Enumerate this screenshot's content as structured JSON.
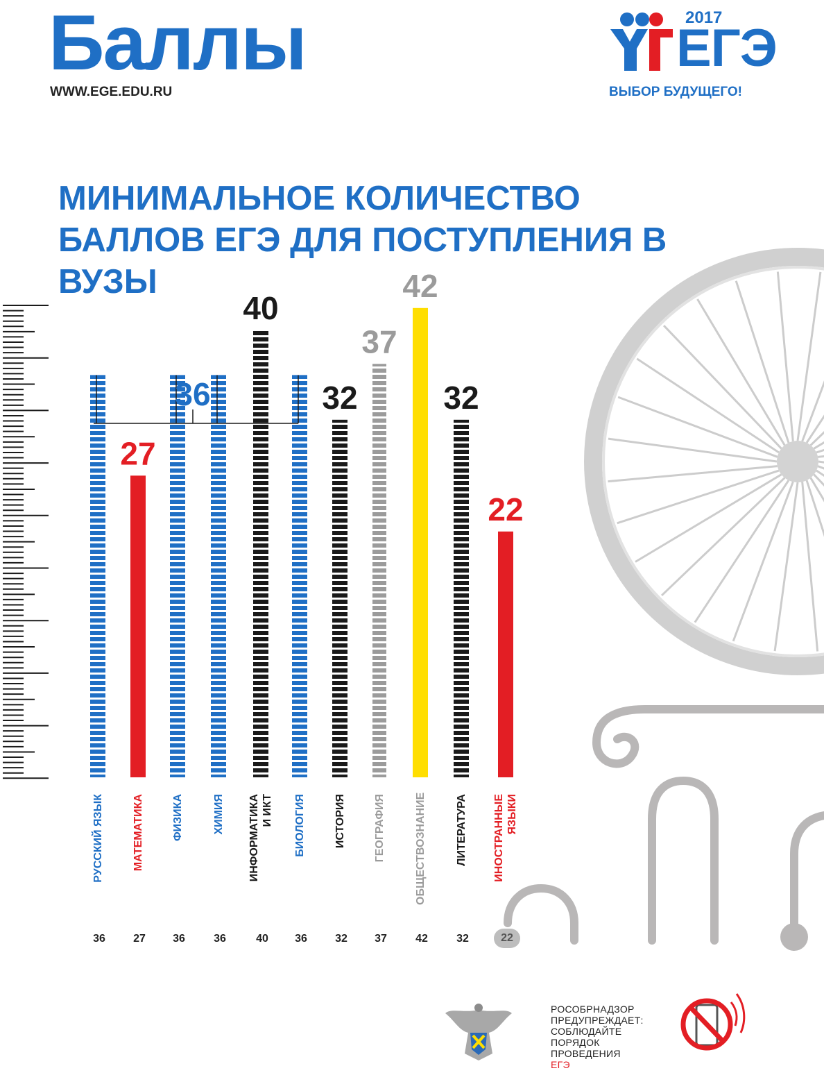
{
  "header": {
    "title": "Баллы",
    "url": "WWW.EGE.EDU.RU"
  },
  "logo": {
    "year": "2017",
    "word": "ЕГЭ",
    "slogan": "ВЫБОР БУДУЩЕГО!"
  },
  "colors": {
    "blue": "#1f6fc5",
    "red": "#e31e24",
    "black": "#1a1a1a",
    "gray": "#9b9b9b",
    "yellow": "#ffde00",
    "decor": "#c9c9c9"
  },
  "chart_data": {
    "type": "bar",
    "title": "МИНИМАЛЬНОЕ КОЛИЧЕСТВО БАЛЛОВ ЕГЭ ДЛЯ ПОСТУПЛЕНИЯ В ВУЗЫ",
    "xlabel": "",
    "ylabel": "",
    "ylim": [
      0,
      42
    ],
    "grid": false,
    "legend": "none",
    "bracket_label": "36",
    "bracket_indices": [
      0,
      2,
      3,
      5
    ],
    "categories": [
      "РУССКИЙ ЯЗЫК",
      "МАТЕМАТИКА",
      "ФИЗИКА",
      "ХИМИЯ",
      "ИНФОРМАТИКА\nИ ИКТ",
      "БИОЛОГИЯ",
      "ИСТОРИЯ",
      "ГЕОГРАФИЯ",
      "ОБЩЕСТВОЗНАНИЕ",
      "ЛИТЕРАТУРА",
      "ИНОСТРАННЫЕ\nЯЗЫКИ"
    ],
    "values": [
      36,
      27,
      36,
      36,
      40,
      36,
      32,
      37,
      42,
      32,
      22
    ],
    "bar_colors": [
      "blue",
      "red",
      "blue",
      "blue",
      "black",
      "blue",
      "black",
      "gray",
      "yellow",
      "black",
      "red"
    ],
    "bar_styles": [
      "striped",
      "solid",
      "striped",
      "striped",
      "striped",
      "striped",
      "striped",
      "striped",
      "solid",
      "striped",
      "solid"
    ],
    "label_colors": [
      "blue",
      "red",
      "blue",
      "blue",
      "black",
      "blue",
      "black",
      "gray",
      "gray",
      "black",
      "red"
    ],
    "top_labels": [
      "",
      "27",
      "",
      "",
      "40",
      "",
      "32",
      "37",
      "42",
      "32",
      "22"
    ],
    "bottom_values": [
      "36",
      "27",
      "36",
      "36",
      "40",
      "36",
      "32",
      "37",
      "42",
      "32",
      "22"
    ]
  },
  "footer": {
    "line1": "РОСОБРНАДЗОР",
    "line2": "ПРЕДУПРЕЖДАЕТ:",
    "line3": "СОБЛЮДАЙТЕ",
    "line4": "ПОРЯДОК",
    "line5": "ПРОВЕДЕНИЯ",
    "line6": "ЕГЭ"
  }
}
